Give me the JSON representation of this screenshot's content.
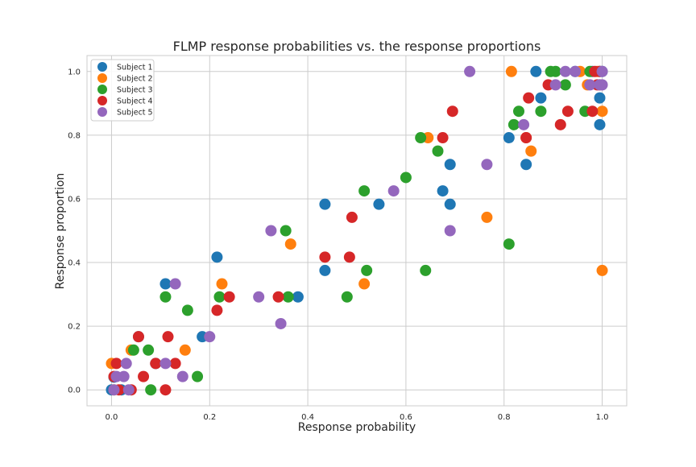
{
  "chart_data": {
    "type": "scatter",
    "title": "FLMP response probabilities vs. the response proportions",
    "xlabel": "Response probability",
    "ylabel": "Response proportion",
    "xlim": [
      -0.05,
      1.05
    ],
    "ylim": [
      -0.05,
      1.05
    ],
    "xticks": [
      "0.0",
      "0.2",
      "0.4",
      "0.6",
      "0.8",
      "1.0"
    ],
    "yticks": [
      "0.0",
      "0.2",
      "0.4",
      "0.6",
      "0.8",
      "1.0"
    ],
    "grid": true,
    "legend_position": "upper-left",
    "series": [
      {
        "name": "Subject 1",
        "color": "#1f77b4",
        "points": [
          [
            0.0,
            0.0
          ],
          [
            0.005,
            0.04
          ],
          [
            0.02,
            0.0
          ],
          [
            0.055,
            0.167
          ],
          [
            0.09,
            0.083
          ],
          [
            0.11,
            0.333
          ],
          [
            0.185,
            0.167
          ],
          [
            0.215,
            0.417
          ],
          [
            0.38,
            0.292
          ],
          [
            0.435,
            0.583
          ],
          [
            0.435,
            0.375
          ],
          [
            0.545,
            0.583
          ],
          [
            0.675,
            0.625
          ],
          [
            0.69,
            0.708
          ],
          [
            0.69,
            0.583
          ],
          [
            0.81,
            0.792
          ],
          [
            0.845,
            0.708
          ],
          [
            0.865,
            1.0
          ],
          [
            0.875,
            0.917
          ],
          [
            0.945,
            1.0
          ],
          [
            0.98,
            1.0
          ],
          [
            0.995,
            0.917
          ],
          [
            0.995,
            0.833
          ],
          [
            0.995,
            1.0
          ],
          [
            1.0,
            1.0
          ]
        ]
      },
      {
        "name": "Subject 2",
        "color": "#ff7f0e",
        "points": [
          [
            0.0,
            0.083
          ],
          [
            0.005,
            0.0
          ],
          [
            0.04,
            0.125
          ],
          [
            0.15,
            0.125
          ],
          [
            0.225,
            0.333
          ],
          [
            0.365,
            0.458
          ],
          [
            0.515,
            0.333
          ],
          [
            0.645,
            0.792
          ],
          [
            0.765,
            0.542
          ],
          [
            0.815,
            1.0
          ],
          [
            0.845,
            0.792
          ],
          [
            0.855,
            0.75
          ],
          [
            0.955,
            1.0
          ],
          [
            0.97,
            0.958
          ],
          [
            0.99,
            1.0
          ],
          [
            1.0,
            0.875
          ],
          [
            1.0,
            0.375
          ],
          [
            0.995,
            0.958
          ]
        ]
      },
      {
        "name": "Subject 3",
        "color": "#2ca02c",
        "points": [
          [
            0.045,
            0.125
          ],
          [
            0.075,
            0.125
          ],
          [
            0.08,
            0.0
          ],
          [
            0.11,
            0.292
          ],
          [
            0.155,
            0.25
          ],
          [
            0.175,
            0.042
          ],
          [
            0.22,
            0.292
          ],
          [
            0.355,
            0.5
          ],
          [
            0.36,
            0.292
          ],
          [
            0.48,
            0.292
          ],
          [
            0.515,
            0.625
          ],
          [
            0.52,
            0.375
          ],
          [
            0.6,
            0.667
          ],
          [
            0.63,
            0.792
          ],
          [
            0.64,
            0.375
          ],
          [
            0.665,
            0.75
          ],
          [
            0.81,
            0.458
          ],
          [
            0.82,
            0.833
          ],
          [
            0.83,
            0.875
          ],
          [
            0.875,
            0.875
          ],
          [
            0.895,
            1.0
          ],
          [
            0.905,
            1.0
          ],
          [
            0.925,
            0.958
          ],
          [
            0.965,
            0.875
          ],
          [
            0.975,
            1.0
          ]
        ]
      },
      {
        "name": "Subject 4",
        "color": "#d62728",
        "points": [
          [
            0.005,
            0.042
          ],
          [
            0.01,
            0.083
          ],
          [
            0.015,
            0.0
          ],
          [
            0.04,
            0.0
          ],
          [
            0.055,
            0.167
          ],
          [
            0.065,
            0.042
          ],
          [
            0.09,
            0.083
          ],
          [
            0.11,
            0.0
          ],
          [
            0.115,
            0.167
          ],
          [
            0.13,
            0.083
          ],
          [
            0.215,
            0.25
          ],
          [
            0.24,
            0.292
          ],
          [
            0.34,
            0.292
          ],
          [
            0.435,
            0.417
          ],
          [
            0.485,
            0.417
          ],
          [
            0.49,
            0.542
          ],
          [
            0.675,
            0.792
          ],
          [
            0.695,
            0.875
          ],
          [
            0.845,
            0.792
          ],
          [
            0.85,
            0.917
          ],
          [
            0.89,
            0.958
          ],
          [
            0.915,
            0.833
          ],
          [
            0.93,
            0.875
          ],
          [
            0.98,
            0.875
          ],
          [
            0.985,
            1.0
          ],
          [
            0.99,
            0.958
          ],
          [
            0.995,
            1.0
          ]
        ]
      },
      {
        "name": "Subject 5",
        "color": "#9467bd",
        "points": [
          [
            0.005,
            0.0
          ],
          [
            0.01,
            0.042
          ],
          [
            0.025,
            0.042
          ],
          [
            0.03,
            0.083
          ],
          [
            0.035,
            0.0
          ],
          [
            0.11,
            0.083
          ],
          [
            0.13,
            0.333
          ],
          [
            0.145,
            0.042
          ],
          [
            0.2,
            0.167
          ],
          [
            0.3,
            0.292
          ],
          [
            0.325,
            0.5
          ],
          [
            0.345,
            0.208
          ],
          [
            0.575,
            0.625
          ],
          [
            0.69,
            0.5
          ],
          [
            0.73,
            1.0
          ],
          [
            0.765,
            0.708
          ],
          [
            0.84,
            0.833
          ],
          [
            0.905,
            0.958
          ],
          [
            0.925,
            1.0
          ],
          [
            0.945,
            1.0
          ],
          [
            0.975,
            0.958
          ],
          [
            0.995,
            0.958
          ],
          [
            1.0,
            0.958
          ],
          [
            1.0,
            1.0
          ]
        ]
      }
    ]
  }
}
